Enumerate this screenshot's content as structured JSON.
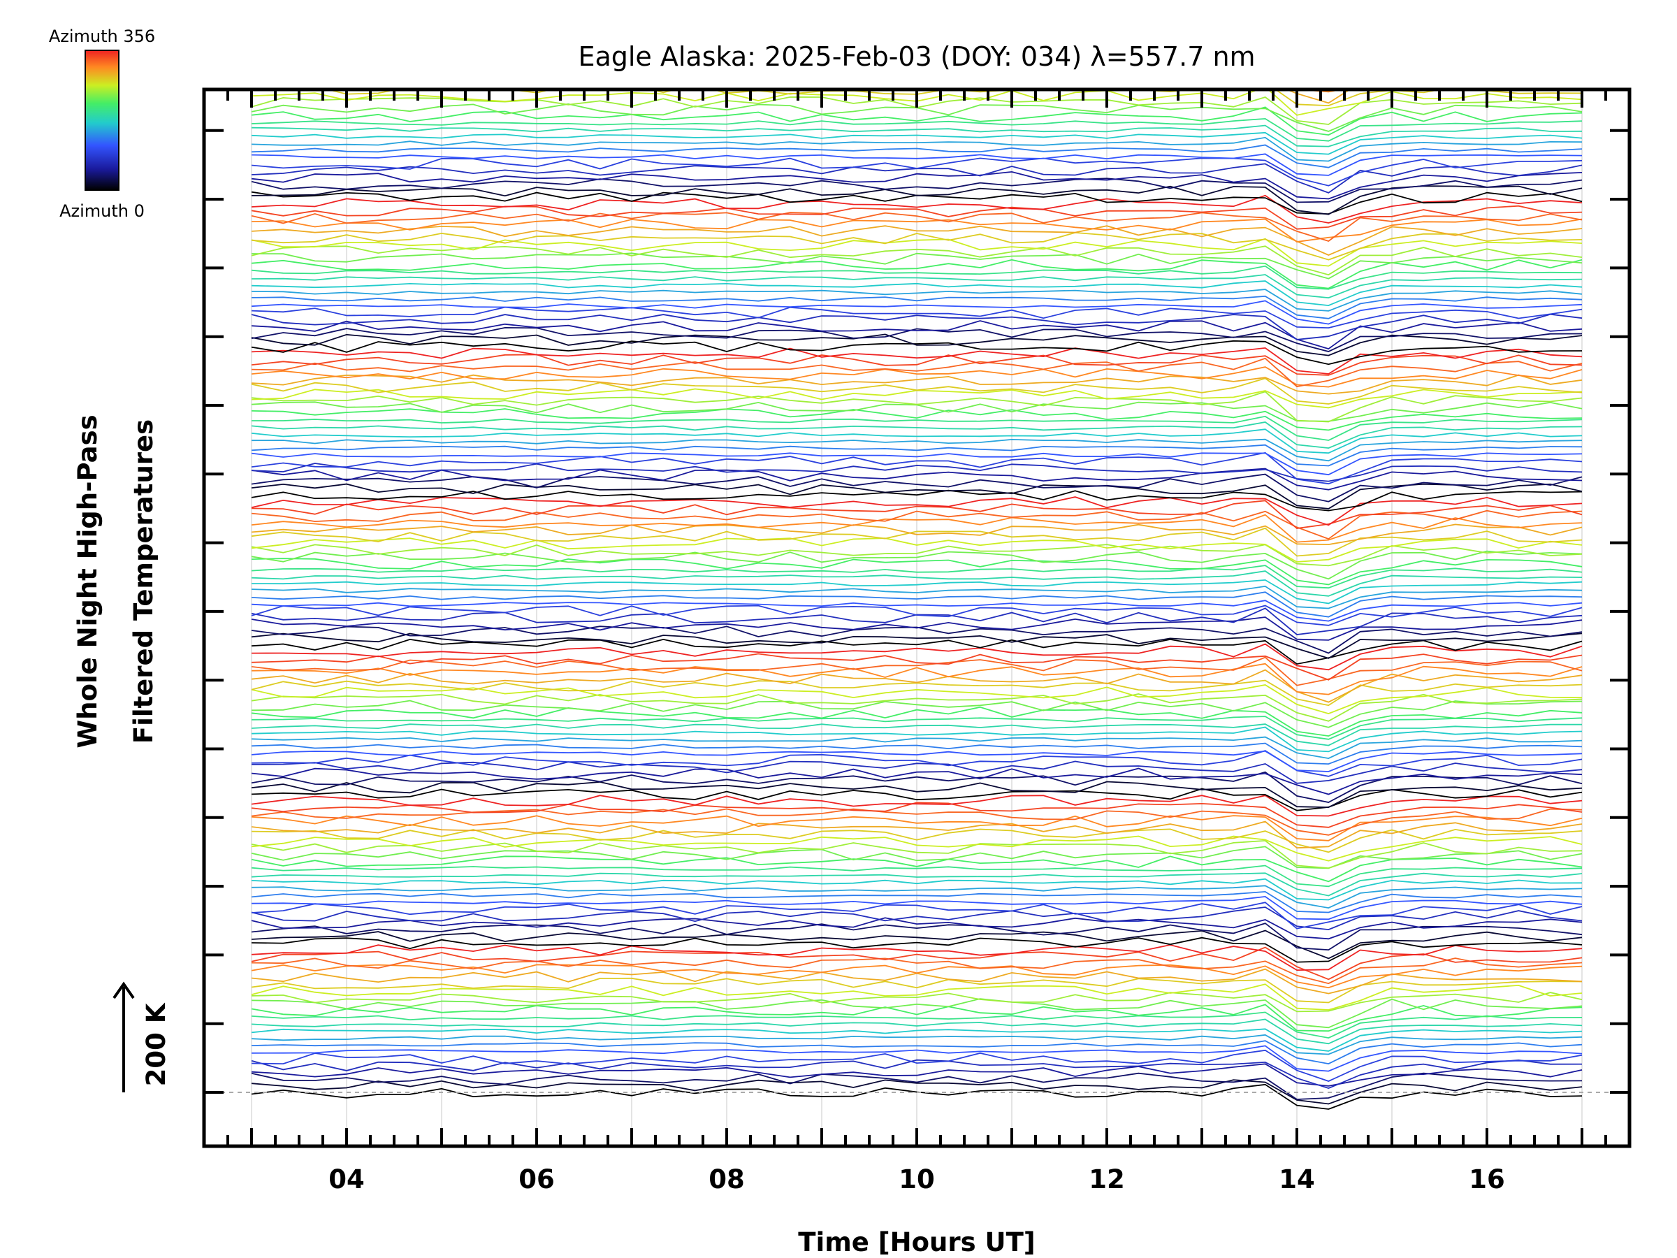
{
  "chart_data": {
    "type": "line",
    "title": "Eagle Alaska: 2025-Feb-03 (DOY: 034) λ=557.7 nm",
    "xlabel": "Time [Hours UT]",
    "ylabel_line1": "Whole Night High-Pass",
    "ylabel_line2": "Filtered Temperatures",
    "scale_label": "200 K",
    "x_tick_labels": [
      "04",
      "06",
      "08",
      "10",
      "12",
      "14",
      "16"
    ],
    "x_tick_values": [
      4,
      6,
      8,
      10,
      12,
      14,
      16
    ],
    "xlim": [
      2.5,
      17.5
    ],
    "x_start": 3.0,
    "x_end": 17.0,
    "colorbar": {
      "max_label": "Azimuth  356",
      "min_label": "Azimuth  0",
      "colors": [
        "#000000",
        "#1a1a9c",
        "#3355ff",
        "#22cccc",
        "#44ee66",
        "#ccee22",
        "#ff8822",
        "#ee2222"
      ]
    },
    "series_description": "Keogram-style stacked high-pass filtered temperature traces, 8 groups of ~22 azimuth-colored lines offset vertically; a sharp common dip occurs near 14 UT.",
    "groups": 8,
    "lines_per_group": 22,
    "dip_time": 14.1,
    "grid": "vertical",
    "legend": "colorbar top-left"
  }
}
